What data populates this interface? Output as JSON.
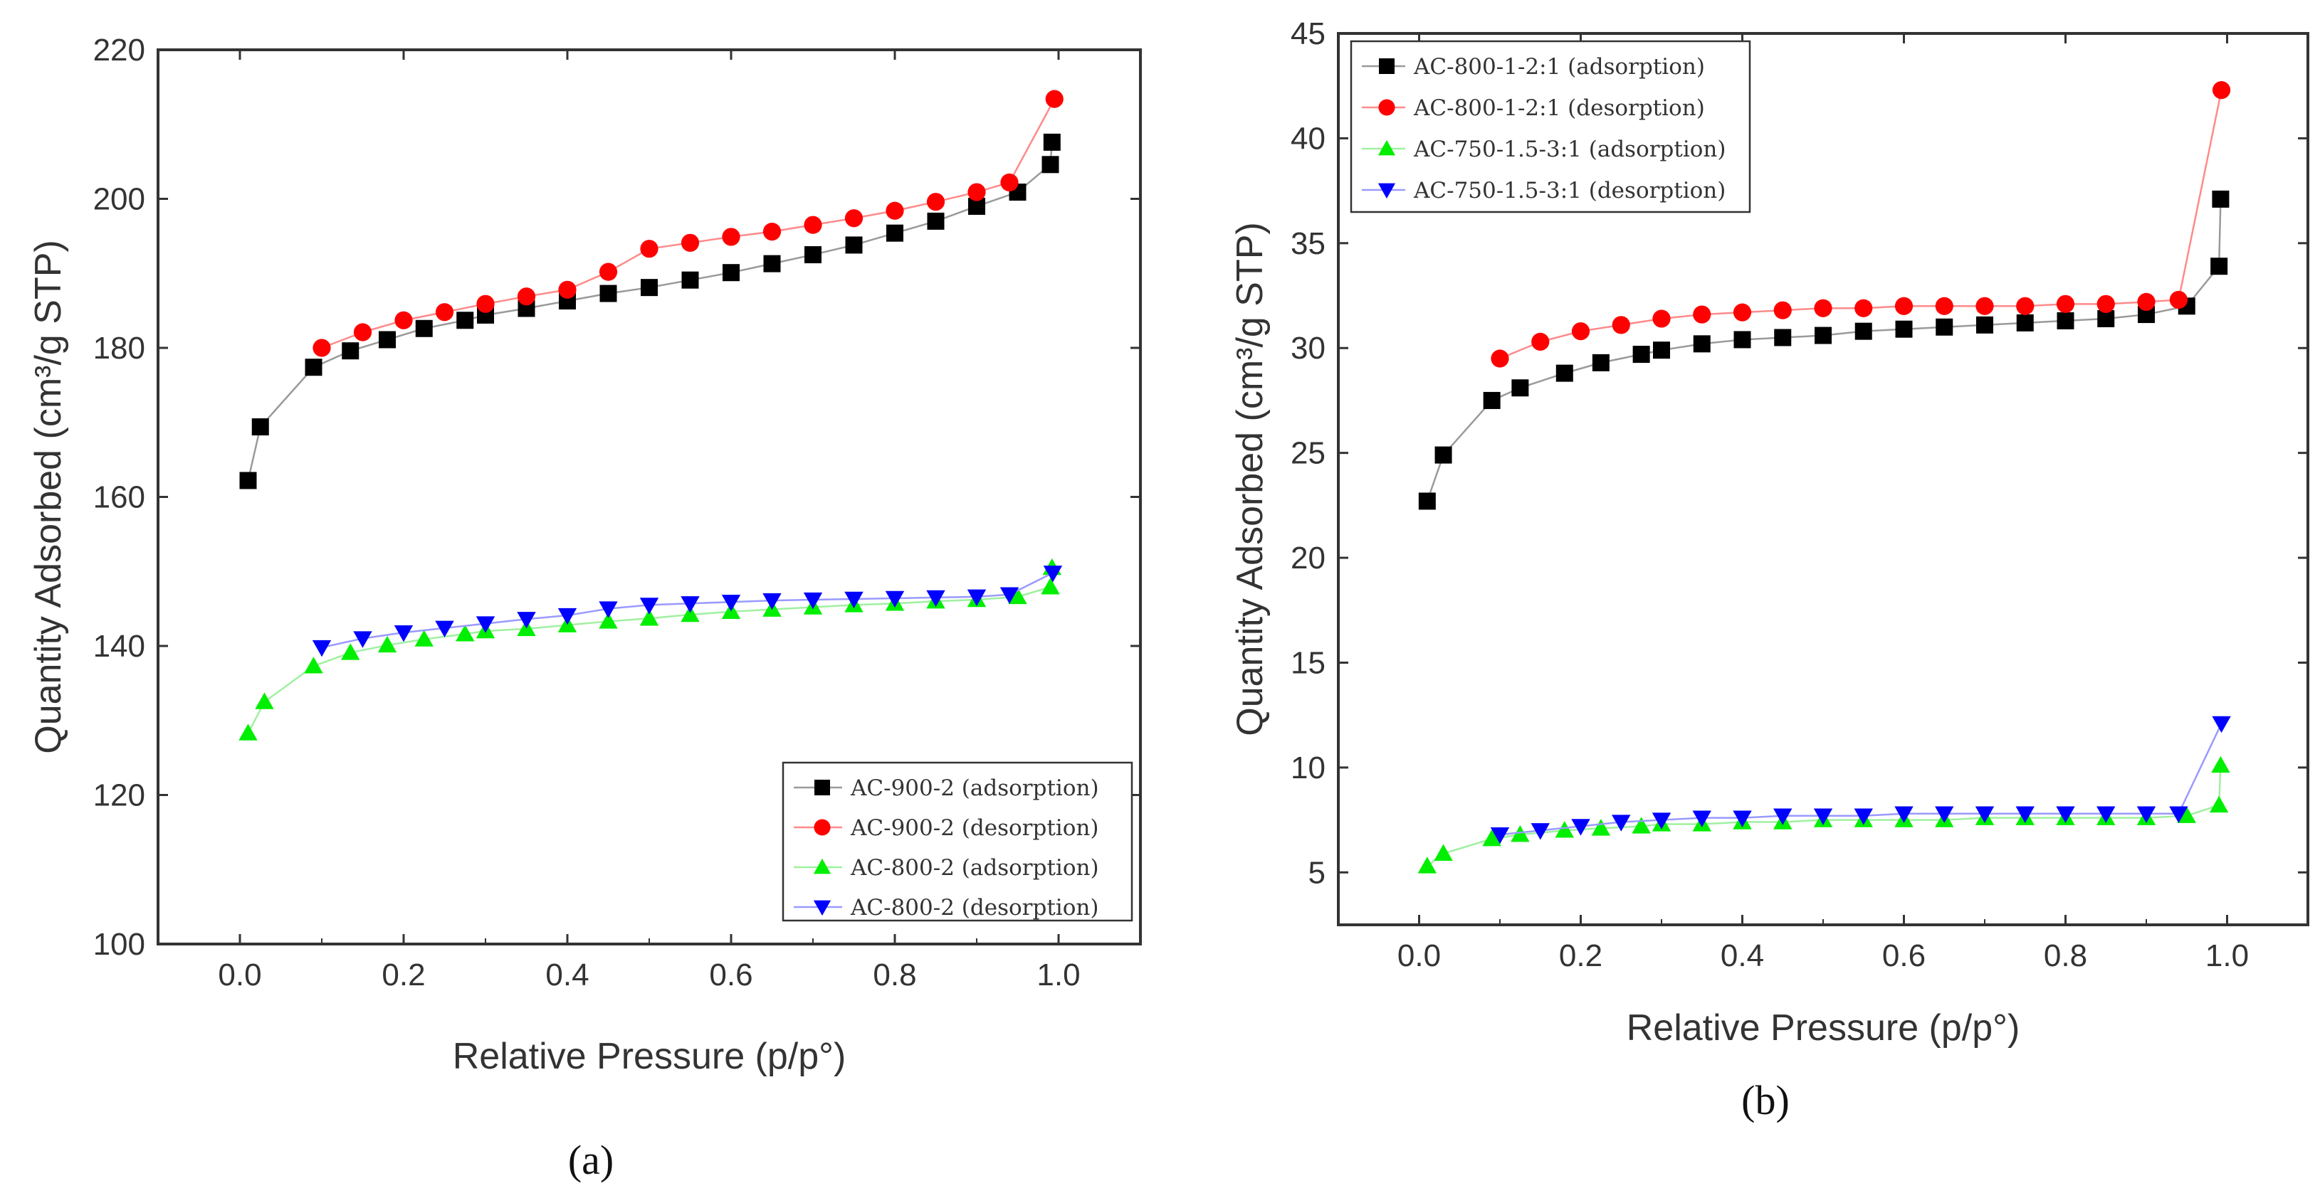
{
  "chart_data": [
    {
      "type": "scatter",
      "panel_label": "(a)",
      "xlabel": "Relative Pressure (p/p°)",
      "ylabel": "Quantity Adsorbed (cm³/g STP)",
      "xlim": [
        -0.1,
        1.1
      ],
      "ylim": [
        100,
        220
      ],
      "xticks": [
        0.0,
        0.2,
        0.4,
        0.6,
        0.8,
        1.0
      ],
      "xtick_labels": [
        "0.0",
        "0.2",
        "0.4",
        "0.6",
        "0.8",
        "1.0"
      ],
      "yticks": [
        100,
        120,
        140,
        160,
        180,
        200,
        220
      ],
      "ytick_labels": [
        "100",
        "120",
        "140",
        "160",
        "180",
        "200",
        "220"
      ],
      "legend_position": "bottom-right",
      "series": [
        {
          "name": "AC-900-2 (adsorption)",
          "marker": "square",
          "color": "#000000",
          "line_color": "#9a9a9a",
          "x": [
            0.01,
            0.025,
            0.09,
            0.135,
            0.18,
            0.225,
            0.275,
            0.3,
            0.35,
            0.4,
            0.45,
            0.5,
            0.55,
            0.6,
            0.65,
            0.7,
            0.75,
            0.8,
            0.85,
            0.9,
            0.95,
            0.99,
            0.992
          ],
          "y": [
            162.2,
            169.4,
            177.4,
            179.6,
            181.1,
            182.6,
            183.7,
            184.4,
            185.3,
            186.3,
            187.3,
            188.1,
            189.1,
            190.1,
            191.3,
            192.5,
            193.8,
            195.4,
            197.0,
            199.0,
            200.9,
            204.6,
            207.6
          ]
        },
        {
          "name": "AC-900-2 (desorption)",
          "marker": "circle",
          "color": "#ff0000",
          "line_color": "#ff8a8a",
          "x": [
            0.995,
            0.94,
            0.9,
            0.85,
            0.8,
            0.75,
            0.7,
            0.65,
            0.6,
            0.55,
            0.5,
            0.45,
            0.4,
            0.35,
            0.3,
            0.25,
            0.2,
            0.15,
            0.1
          ],
          "y": [
            213.4,
            202.2,
            200.9,
            199.6,
            198.4,
            197.4,
            196.5,
            195.6,
            194.9,
            194.1,
            193.3,
            190.2,
            187.8,
            186.9,
            185.9,
            184.8,
            183.7,
            182.1,
            180.0
          ]
        },
        {
          "name": "AC-800-2 (adsorption)",
          "marker": "triangle-up",
          "color": "#00ee00",
          "line_color": "#a0f0a0",
          "x": [
            0.01,
            0.03,
            0.09,
            0.135,
            0.18,
            0.225,
            0.275,
            0.3,
            0.35,
            0.4,
            0.45,
            0.5,
            0.55,
            0.6,
            0.65,
            0.7,
            0.75,
            0.8,
            0.85,
            0.9,
            0.95,
            0.99,
            0.992
          ],
          "y": [
            128.3,
            132.5,
            137.3,
            139.1,
            140.1,
            140.9,
            141.6,
            142.0,
            142.3,
            142.8,
            143.3,
            143.7,
            144.2,
            144.6,
            144.9,
            145.2,
            145.5,
            145.7,
            146.0,
            146.2,
            146.6,
            147.9,
            150.5
          ]
        },
        {
          "name": "AC-800-2 (desorption)",
          "marker": "triangle-down",
          "color": "#0000ff",
          "line_color": "#9a9aff",
          "x": [
            0.993,
            0.94,
            0.9,
            0.85,
            0.8,
            0.75,
            0.7,
            0.65,
            0.6,
            0.55,
            0.5,
            0.45,
            0.4,
            0.35,
            0.3,
            0.25,
            0.2,
            0.15,
            0.1
          ],
          "y": [
            149.8,
            146.9,
            146.6,
            146.5,
            146.4,
            146.3,
            146.2,
            146.1,
            145.9,
            145.7,
            145.5,
            145.0,
            144.1,
            143.6,
            143.0,
            142.4,
            141.8,
            141.0,
            139.8
          ]
        }
      ]
    },
    {
      "type": "scatter",
      "panel_label": "(b)",
      "xlabel": "Relative Pressure (p/p°)",
      "ylabel": "Quantity Adsorbed (cm³/g STP)",
      "xlim": [
        -0.1,
        1.1
      ],
      "ylim": [
        2.5,
        45
      ],
      "xticks": [
        0.0,
        0.2,
        0.4,
        0.6,
        0.8,
        1.0
      ],
      "xtick_labels": [
        "0.0",
        "0.2",
        "0.4",
        "0.6",
        "0.8",
        "1.0"
      ],
      "yticks": [
        5,
        10,
        15,
        20,
        25,
        30,
        35,
        40,
        45
      ],
      "ytick_labels": [
        "5",
        "10",
        "15",
        "20",
        "25",
        "30",
        "35",
        "40",
        "45"
      ],
      "legend_position": "top-left",
      "series": [
        {
          "name": "AC-800-1-2:1 (adsorption)",
          "marker": "square",
          "color": "#000000",
          "line_color": "#9a9a9a",
          "x": [
            0.01,
            0.03,
            0.09,
            0.125,
            0.18,
            0.225,
            0.275,
            0.3,
            0.35,
            0.4,
            0.45,
            0.5,
            0.55,
            0.6,
            0.65,
            0.7,
            0.75,
            0.8,
            0.85,
            0.9,
            0.95,
            0.99,
            0.992
          ],
          "y": [
            22.7,
            24.9,
            27.5,
            28.1,
            28.8,
            29.3,
            29.7,
            29.9,
            30.2,
            30.4,
            30.5,
            30.6,
            30.8,
            30.9,
            31.0,
            31.1,
            31.2,
            31.3,
            31.4,
            31.6,
            32.0,
            33.9,
            37.1
          ]
        },
        {
          "name": "AC-800-1-2:1 (desorption)",
          "marker": "circle",
          "color": "#ff0000",
          "line_color": "#ff8a8a",
          "x": [
            0.993,
            0.94,
            0.9,
            0.85,
            0.8,
            0.75,
            0.7,
            0.65,
            0.6,
            0.55,
            0.5,
            0.45,
            0.4,
            0.35,
            0.3,
            0.25,
            0.2,
            0.15,
            0.1
          ],
          "y": [
            42.3,
            32.3,
            32.2,
            32.1,
            32.1,
            32.0,
            32.0,
            32.0,
            32.0,
            31.9,
            31.9,
            31.8,
            31.7,
            31.6,
            31.4,
            31.1,
            30.8,
            30.3,
            29.5
          ]
        },
        {
          "name": "AC-750-1.5-3:1 (adsorption)",
          "marker": "triangle-up",
          "color": "#00ee00",
          "line_color": "#a0f0a0",
          "x": [
            0.01,
            0.03,
            0.09,
            0.125,
            0.18,
            0.225,
            0.275,
            0.3,
            0.35,
            0.4,
            0.45,
            0.5,
            0.55,
            0.6,
            0.65,
            0.7,
            0.75,
            0.8,
            0.85,
            0.9,
            0.95,
            0.99,
            0.992
          ],
          "y": [
            5.3,
            5.9,
            6.6,
            6.8,
            7.0,
            7.1,
            7.2,
            7.3,
            7.3,
            7.4,
            7.4,
            7.5,
            7.5,
            7.5,
            7.5,
            7.6,
            7.6,
            7.6,
            7.6,
            7.6,
            7.7,
            8.2,
            10.1
          ]
        },
        {
          "name": "AC-750-1.5-3:1 (desorption)",
          "marker": "triangle-down",
          "color": "#0000ff",
          "line_color": "#9a9aff",
          "x": [
            0.993,
            0.94,
            0.9,
            0.85,
            0.8,
            0.75,
            0.7,
            0.65,
            0.6,
            0.55,
            0.5,
            0.45,
            0.4,
            0.35,
            0.3,
            0.25,
            0.2,
            0.15,
            0.1
          ],
          "y": [
            12.1,
            7.8,
            7.8,
            7.8,
            7.8,
            7.8,
            7.8,
            7.8,
            7.8,
            7.7,
            7.7,
            7.7,
            7.6,
            7.6,
            7.5,
            7.4,
            7.2,
            7.0,
            6.8
          ]
        }
      ]
    }
  ]
}
